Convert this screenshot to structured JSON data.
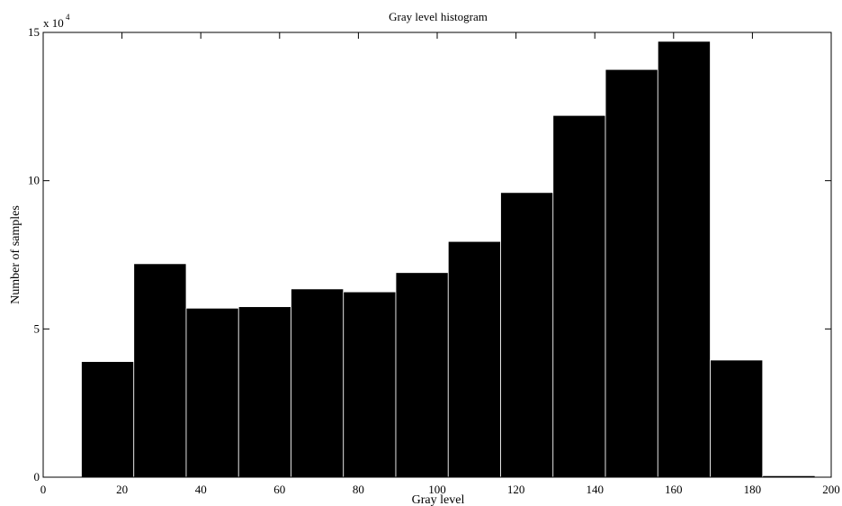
{
  "chart_data": {
    "type": "bar",
    "title": "Gray level histogram",
    "xlabel": "Gray level",
    "ylabel": "Number of samples",
    "y_multiplier": "x 10",
    "y_multiplier_exponent": "4",
    "xlim": [
      0,
      200
    ],
    "ylim": [
      0,
      150000
    ],
    "x_ticks": [
      0,
      20,
      40,
      60,
      80,
      100,
      120,
      140,
      160,
      180,
      200
    ],
    "x_tick_labels": [
      "0",
      "20",
      "40",
      "60",
      "80",
      "100",
      "120",
      "140",
      "160",
      "180",
      "200"
    ],
    "y_ticks": [
      0,
      50000,
      100000,
      150000
    ],
    "y_tick_labels": [
      "0",
      "5",
      "10",
      "15"
    ],
    "bin_edges": [
      9.7,
      23.0,
      36.3,
      49.6,
      62.9,
      76.2,
      89.5,
      102.8,
      116.1,
      129.4,
      142.7,
      156.0,
      169.3,
      182.6,
      195.9
    ],
    "values": [
      39000,
      72000,
      57000,
      57500,
      63500,
      62500,
      69000,
      79500,
      96000,
      122000,
      137500,
      147000,
      39500,
      500
    ],
    "bar_color": "#000000",
    "bar_edge_color": "#ffffff",
    "grid": false
  }
}
